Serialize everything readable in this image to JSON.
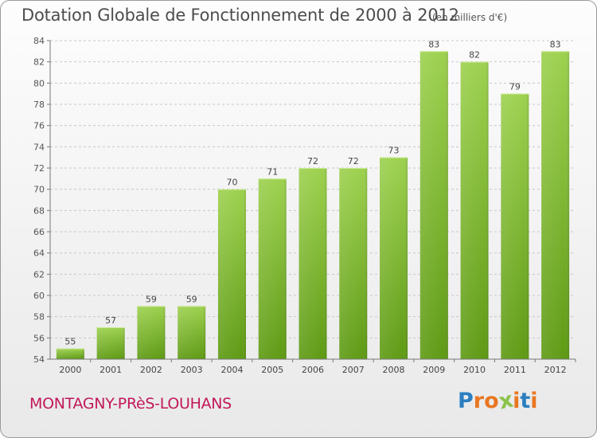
{
  "chart_data": {
    "type": "bar",
    "title": "Dotation Globale de Fonctionnement de 2000 à 2012",
    "unit": "(en milliers d'€)",
    "categories": [
      "2000",
      "2001",
      "2002",
      "2003",
      "2004",
      "2005",
      "2006",
      "2007",
      "2008",
      "2009",
      "2010",
      "2011",
      "2012"
    ],
    "values": [
      55,
      57,
      59,
      59,
      70,
      71,
      72,
      72,
      73,
      83,
      82,
      79,
      83
    ],
    "ylim": [
      54,
      84
    ],
    "yticks": [
      54,
      56,
      58,
      60,
      62,
      64,
      66,
      68,
      70,
      72,
      74,
      76,
      78,
      80,
      82,
      84
    ],
    "xlabel": "",
    "ylabel": "",
    "grid": true,
    "bar_color_top": "#9dd14f",
    "bar_color_bottom": "#5e9a14"
  },
  "commune_name": "MONTAGNY-PRèS-LOUHANS",
  "brand": {
    "letters": [
      "P",
      "r",
      "o",
      "x",
      "i",
      "t",
      "i"
    ],
    "colors": [
      "#2b7fc1",
      "#e87722",
      "#e87722",
      "#8bc34a",
      "#e87722",
      "#2b7fc1",
      "#e87722"
    ]
  }
}
